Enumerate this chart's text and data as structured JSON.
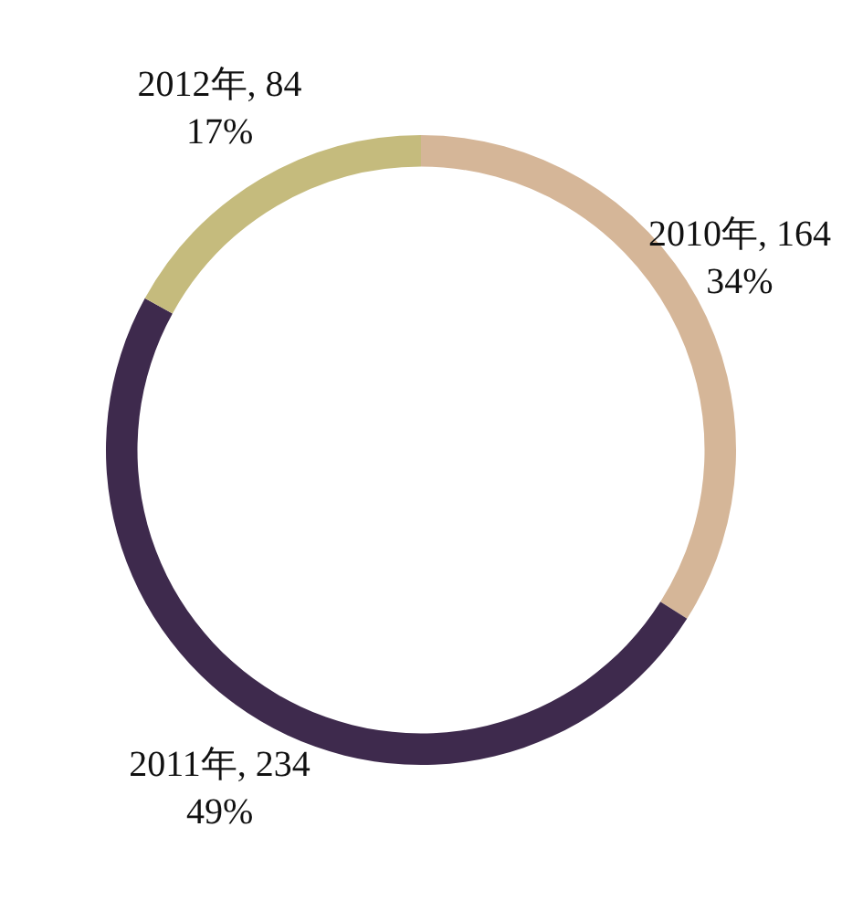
{
  "chart_data": {
    "type": "donut",
    "categories": [
      "2010年, 164",
      "2011年, 234",
      "2012年, 84"
    ],
    "values": [
      34,
      49,
      17
    ],
    "colors": [
      "#d5b698",
      "#3e2a4d",
      "#c5bb7d"
    ],
    "value_labels": [
      "34%",
      "49%",
      "17%"
    ],
    "legend": false
  }
}
